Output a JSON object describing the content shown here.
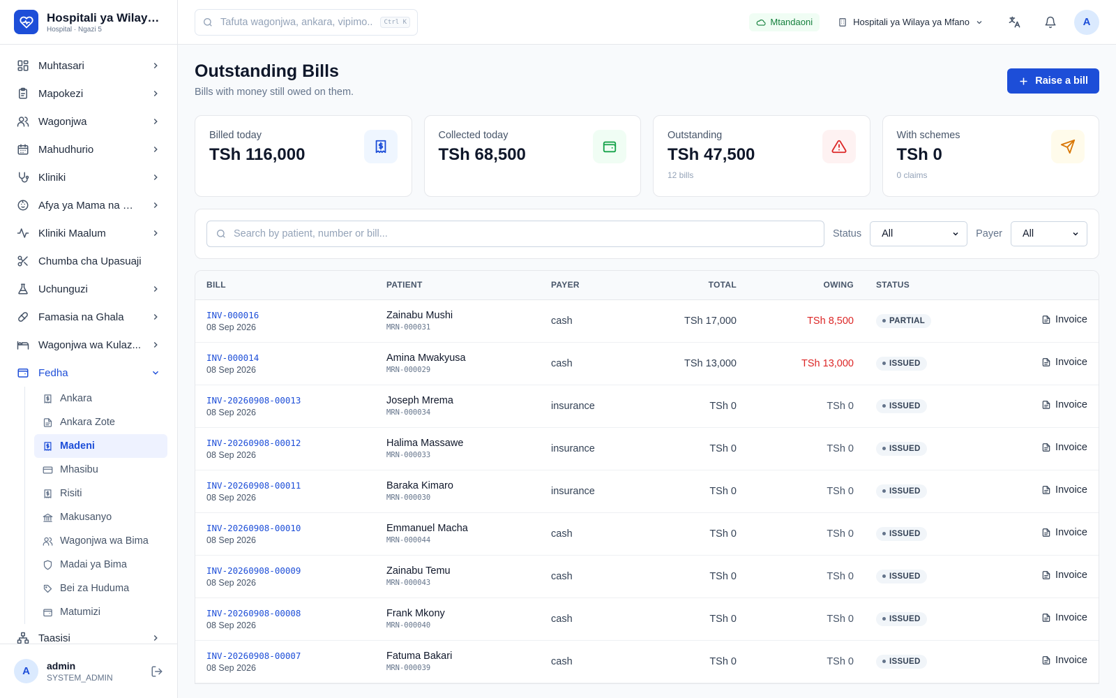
{
  "brand": {
    "title": "Hospitali ya Wilaya ...",
    "subtitle": "Hospital · Ngazi 5",
    "icon": "heart-pulse-icon",
    "color": "#1d4ed8"
  },
  "sidebar": {
    "items": [
      {
        "label": "Muhtasari",
        "icon": "dashboard-icon"
      },
      {
        "label": "Mapokezi",
        "icon": "clipboard-icon"
      },
      {
        "label": "Wagonjwa",
        "icon": "users-icon"
      },
      {
        "label": "Mahudhurio",
        "icon": "calendar-icon"
      },
      {
        "label": "Kliniki",
        "icon": "stethoscope-icon"
      },
      {
        "label": "Afya ya Mama na Mt...",
        "icon": "baby-icon"
      },
      {
        "label": "Kliniki Maalum",
        "icon": "activity-icon"
      },
      {
        "label": "Chumba cha Upasuaji",
        "icon": "scissors-icon"
      },
      {
        "label": "Uchunguzi",
        "icon": "flask-icon"
      },
      {
        "label": "Famasia na Ghala",
        "icon": "pill-icon"
      },
      {
        "label": "Wagonjwa wa Kulaz...",
        "icon": "bed-icon"
      },
      {
        "label": "Fedha",
        "icon": "wallet-icon"
      }
    ],
    "finance_sub": [
      {
        "label": "Ankara",
        "icon": "receipt-icon"
      },
      {
        "label": "Ankara Zote",
        "icon": "file-icon"
      },
      {
        "label": "Madeni",
        "icon": "receipt-icon"
      },
      {
        "label": "Mhasibu",
        "icon": "card-icon"
      },
      {
        "label": "Risiti",
        "icon": "receipt-icon"
      },
      {
        "label": "Makusanyo",
        "icon": "bank-icon"
      },
      {
        "label": "Wagonjwa wa Bima",
        "icon": "users-icon"
      },
      {
        "label": "Madai ya Bima",
        "icon": "shield-icon"
      },
      {
        "label": "Bei za Huduma",
        "icon": "tag-icon"
      },
      {
        "label": "Matumizi",
        "icon": "wallet-icon"
      }
    ],
    "after": [
      {
        "label": "Taasisi",
        "icon": "network-icon"
      }
    ]
  },
  "user": {
    "initial": "A",
    "name": "admin",
    "role": "SYSTEM_ADMIN"
  },
  "topbar": {
    "search_placeholder": "Tafuta wagonjwa, ankara, vipimo...",
    "shortcut": "Ctrl K",
    "online": "Mtandaoni",
    "facility": "Hospitali ya Wilaya ya Mfano",
    "avatar": "A"
  },
  "page": {
    "title": "Outstanding Bills",
    "subtitle": "Bills with money still owed on them.",
    "raise_btn": "Raise a bill"
  },
  "stats": [
    {
      "label": "Billed today",
      "value": "TSh 116,000",
      "note": "",
      "icon": "receipt-icon",
      "color": "#1d4ed8",
      "bg": "#eff6ff"
    },
    {
      "label": "Collected today",
      "value": "TSh 68,500",
      "note": "",
      "icon": "wallet-icon",
      "color": "#16a34a",
      "bg": "#f0fdf4"
    },
    {
      "label": "Outstanding",
      "value": "TSh 47,500",
      "note": "12 bills",
      "icon": "alert-triangle-icon",
      "color": "#dc2626",
      "bg": "#fef2f2"
    },
    {
      "label": "With schemes",
      "value": "TSh 0",
      "note": "0 claims",
      "icon": "send-icon",
      "color": "#d97706",
      "bg": "#fffbeb"
    }
  ],
  "filters": {
    "search_placeholder": "Search by patient, number or bill...",
    "status_label": "Status",
    "status_value": "All",
    "payer_label": "Payer",
    "payer_value": "All"
  },
  "table": {
    "headers": {
      "bill": "BILL",
      "patient": "PATIENT",
      "payer": "PAYER",
      "total": "TOTAL",
      "owing": "OWING",
      "status": "STATUS"
    },
    "action_label": "Invoice",
    "rows": [
      {
        "bill": "INV-000016",
        "date": "08 Sep 2026",
        "patient": "Zainabu Mushi",
        "mrn": "MRN-000031",
        "payer": "cash",
        "total": "TSh 17,000",
        "owing": "TSh 8,500",
        "owing_red": true,
        "status": "PARTIAL"
      },
      {
        "bill": "INV-000014",
        "date": "08 Sep 2026",
        "patient": "Amina Mwakyusa",
        "mrn": "MRN-000029",
        "payer": "cash",
        "total": "TSh 13,000",
        "owing": "TSh 13,000",
        "owing_red": true,
        "status": "ISSUED"
      },
      {
        "bill": "INV-20260908-00013",
        "date": "08 Sep 2026",
        "patient": "Joseph Mrema",
        "mrn": "MRN-000034",
        "payer": "insurance",
        "total": "TSh 0",
        "owing": "TSh 0",
        "owing_red": false,
        "status": "ISSUED"
      },
      {
        "bill": "INV-20260908-00012",
        "date": "08 Sep 2026",
        "patient": "Halima Massawe",
        "mrn": "MRN-000033",
        "payer": "insurance",
        "total": "TSh 0",
        "owing": "TSh 0",
        "owing_red": false,
        "status": "ISSUED"
      },
      {
        "bill": "INV-20260908-00011",
        "date": "08 Sep 2026",
        "patient": "Baraka Kimaro",
        "mrn": "MRN-000030",
        "payer": "insurance",
        "total": "TSh 0",
        "owing": "TSh 0",
        "owing_red": false,
        "status": "ISSUED"
      },
      {
        "bill": "INV-20260908-00010",
        "date": "08 Sep 2026",
        "patient": "Emmanuel Macha",
        "mrn": "MRN-000044",
        "payer": "cash",
        "total": "TSh 0",
        "owing": "TSh 0",
        "owing_red": false,
        "status": "ISSUED"
      },
      {
        "bill": "INV-20260908-00009",
        "date": "08 Sep 2026",
        "patient": "Zainabu Temu",
        "mrn": "MRN-000043",
        "payer": "cash",
        "total": "TSh 0",
        "owing": "TSh 0",
        "owing_red": false,
        "status": "ISSUED"
      },
      {
        "bill": "INV-20260908-00008",
        "date": "08 Sep 2026",
        "patient": "Frank Mkony",
        "mrn": "MRN-000040",
        "payer": "cash",
        "total": "TSh 0",
        "owing": "TSh 0",
        "owing_red": false,
        "status": "ISSUED"
      },
      {
        "bill": "INV-20260908-00007",
        "date": "08 Sep 2026",
        "patient": "Fatuma Bakari",
        "mrn": "MRN-000039",
        "payer": "cash",
        "total": "TSh 0",
        "owing": "TSh 0",
        "owing_red": false,
        "status": "ISSUED"
      }
    ]
  }
}
